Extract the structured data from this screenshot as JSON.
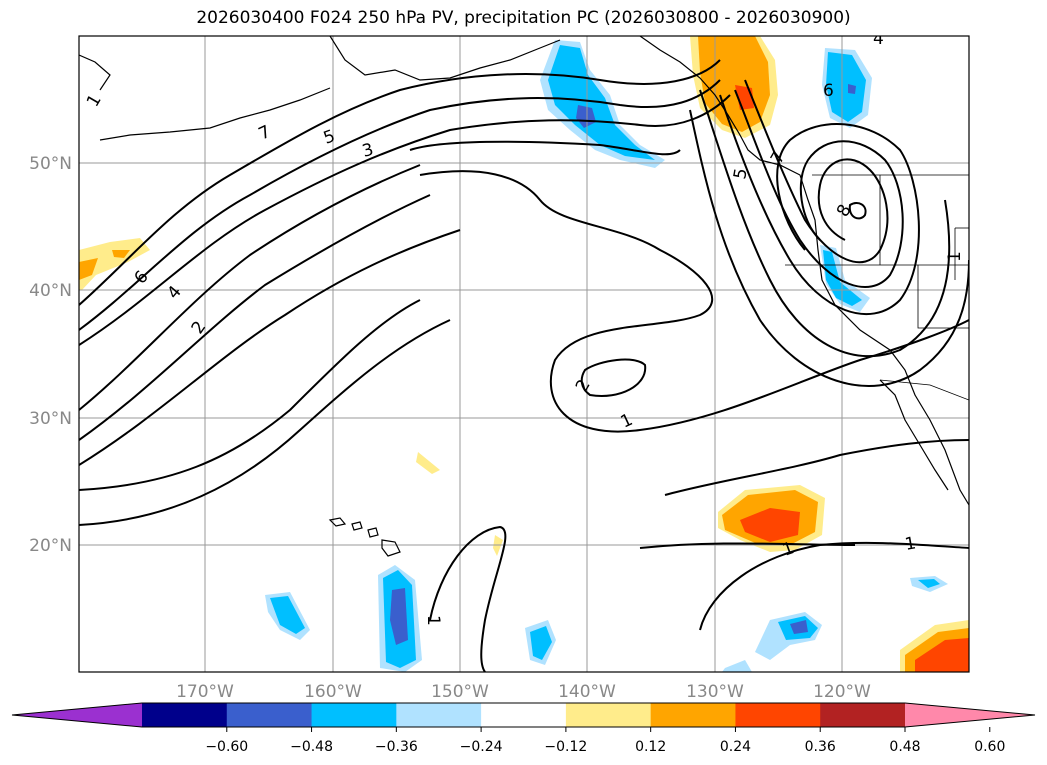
{
  "title": "2026030400 F024 250 hPa PV, precipitation PC (2026030800 - 2026030900)",
  "lat_labels": [
    "50°N",
    "40°N",
    "30°N",
    "20°N"
  ],
  "lon_labels": [
    "170°W",
    "160°W",
    "150°W",
    "140°W",
    "130°W",
    "120°W"
  ],
  "colorbar": {
    "ticks": [
      "−0.60",
      "−0.48",
      "−0.36",
      "−0.24",
      "−0.12",
      "0.12",
      "0.24",
      "0.36",
      "0.48",
      "0.60"
    ],
    "colors": [
      "#9b30d0",
      "#00008b",
      "#3a5fcd",
      "#00bfff",
      "#b0e2ff",
      "#ffffff",
      "#ffec8b",
      "#ffa500",
      "#ff4500",
      "#b22222",
      "#ff88aa"
    ]
  },
  "contour_labels": [
    "1",
    "7",
    "5",
    "3",
    "6",
    "4",
    "2",
    "2",
    "1",
    "1",
    "1",
    "1",
    "6",
    "5",
    "7",
    "8",
    "1",
    "4"
  ]
}
